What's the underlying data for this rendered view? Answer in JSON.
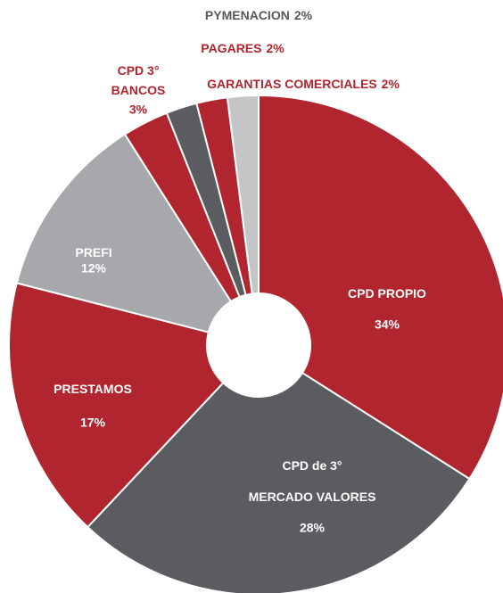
{
  "chart_data": {
    "type": "pie",
    "categories": [
      [
        "CPD PROPIO"
      ],
      [
        "CPD de 3°",
        "MERCADO VALORES"
      ],
      [
        "PRESTAMOS"
      ],
      [
        "PREFI"
      ],
      [
        "CPD 3°",
        "BANCOS"
      ],
      [
        "PYMENACION"
      ],
      [
        "PAGARES"
      ],
      [
        "GARANTIAS   COMERCIALES"
      ]
    ],
    "values": [
      34,
      28,
      17,
      12,
      3,
      2,
      2,
      2
    ],
    "value_labels": [
      "34%",
      "28%",
      "17%",
      "12%",
      "3%",
      "2%",
      "2%",
      "2%"
    ],
    "colors": [
      "#b0252e",
      "#5b5c60",
      "#b0252e",
      "#a7a8ab",
      "#b0252e",
      "#5b5c60",
      "#b0252e",
      "#c4c5c7"
    ],
    "label_colors": [
      "#ffffff",
      "#ffffff",
      "#ffffff",
      "#ffffff",
      "#b0252e",
      "#58595b",
      "#b0252e",
      "#b0252e"
    ]
  }
}
